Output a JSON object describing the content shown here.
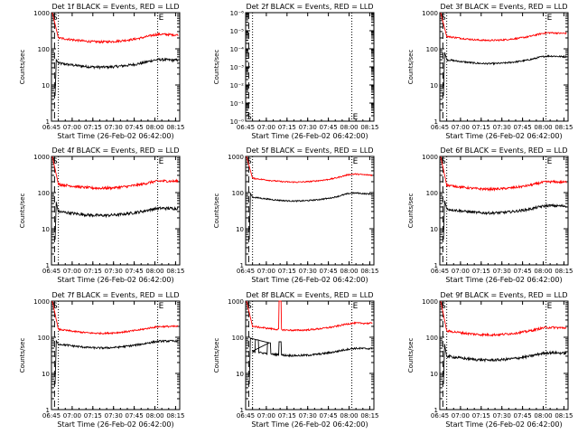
{
  "figure": {
    "colors": {
      "events": "#000000",
      "lld": "#ff0000",
      "axes": "#000000",
      "background": "#ffffff"
    }
  },
  "chart_data": [
    {
      "type": "line",
      "scale": "log",
      "title": "Det 1f BLACK = Events, RED = LLD",
      "xlabel": "Start Time (26-Feb-02 06:42:00)",
      "ylabel": "Counts/sec",
      "x_ticks": [
        "06:45",
        "07:00",
        "07:15",
        "07:30",
        "07:45",
        "08:00",
        "08:15"
      ],
      "y_ticks": [
        "1",
        "10",
        "100",
        "1000"
      ],
      "ylim": [
        1,
        1000
      ],
      "markers": [
        "S",
        "E"
      ],
      "series": [
        {
          "name": "Events",
          "color": "#000000",
          "base": 40,
          "trend": 0.8,
          "noise": 0.08,
          "features": [
            {
              "t": 6.5,
              "v": 50
            }
          ]
        },
        {
          "name": "LLD",
          "color": "#ff0000",
          "base": 200,
          "trend": 0.8,
          "noise": 0.07
        }
      ]
    },
    {
      "type": "line",
      "scale": "log",
      "title": "Det 2f BLACK = Events, RED = LLD",
      "xlabel": "Start Time (26-Feb-02 06:42:00)",
      "ylabel": "Counts/sec",
      "x_ticks": [
        "06:45",
        "07:00",
        "07:15",
        "07:30",
        "07:45",
        "08:00",
        "08:15"
      ],
      "y_ticks": [
        "10⁻⁰",
        "10⁻¹",
        "10⁻²",
        "10⁻³",
        "10⁻⁴",
        "10⁻⁵",
        "10⁻⁶"
      ],
      "markers": [
        "S",
        "E"
      ],
      "series": []
    },
    {
      "type": "line",
      "scale": "log",
      "title": "Det 3f BLACK = Events, RED = LLD",
      "xlabel": "Start Time (26-Feb-02 06:42:00)",
      "ylabel": "Counts/sec",
      "x_ticks": [
        "06:45",
        "07:00",
        "07:15",
        "07:30",
        "07:45",
        "08:00",
        "08:15"
      ],
      "y_ticks": [
        "1",
        "10",
        "100",
        "1000"
      ],
      "ylim": [
        1,
        1000
      ],
      "markers": [
        "S",
        "E"
      ],
      "series": [
        {
          "name": "Events",
          "color": "#000000",
          "base": 50,
          "trend": 0.8,
          "noise": 0.05,
          "features": [
            {
              "t": 6.5,
              "v": 80
            }
          ]
        },
        {
          "name": "LLD",
          "color": "#ff0000",
          "base": 220,
          "trend": 0.8,
          "noise": 0.05
        }
      ]
    },
    {
      "type": "line",
      "scale": "log",
      "title": "Det 4f BLACK = Events, RED = LLD",
      "xlabel": "Start Time (26-Feb-02 06:42:00)",
      "ylabel": "Counts/sec",
      "x_ticks": [
        "06:45",
        "07:00",
        "07:15",
        "07:30",
        "07:45",
        "08:00",
        "08:15"
      ],
      "y_ticks": [
        "1",
        "10",
        "100",
        "1000"
      ],
      "ylim": [
        1,
        1000
      ],
      "markers": [
        "S",
        "E"
      ],
      "series": [
        {
          "name": "Events",
          "color": "#000000",
          "base": 30,
          "trend": 0.6,
          "noise": 0.09,
          "features": [
            {
              "t": 6.5,
              "v": 55
            }
          ]
        },
        {
          "name": "LLD",
          "color": "#ff0000",
          "base": 170,
          "trend": 0.6,
          "noise": 0.08
        }
      ]
    },
    {
      "type": "line",
      "scale": "log",
      "title": "Det 5f BLACK = Events, RED = LLD",
      "xlabel": "Start Time (26-Feb-02 06:42:00)",
      "ylabel": "Counts/sec",
      "x_ticks": [
        "06:45",
        "07:00",
        "07:15",
        "07:30",
        "07:45",
        "08:00",
        "08:15"
      ],
      "y_ticks": [
        "1",
        "10",
        "100",
        "1000"
      ],
      "ylim": [
        1,
        1000
      ],
      "markers": [
        "S",
        "E"
      ],
      "series": [
        {
          "name": "Events",
          "color": "#000000",
          "base": 75,
          "trend": 1.0,
          "noise": 0.04,
          "features": [
            {
              "t": 6.5,
              "v": 95
            }
          ]
        },
        {
          "name": "LLD",
          "color": "#ff0000",
          "base": 250,
          "trend": 1.0,
          "noise": 0.04
        }
      ]
    },
    {
      "type": "line",
      "scale": "log",
      "title": "Det 6f BLACK = Events, RED = LLD",
      "xlabel": "Start Time (26-Feb-02 06:42:00)",
      "ylabel": "Counts/sec",
      "x_ticks": [
        "06:45",
        "07:00",
        "07:15",
        "07:30",
        "07:45",
        "08:00",
        "08:15"
      ],
      "y_ticks": [
        "1",
        "10",
        "100",
        "1000"
      ],
      "ylim": [
        1,
        1000
      ],
      "markers": [
        "S",
        "E"
      ],
      "series": [
        {
          "name": "Events",
          "color": "#000000",
          "base": 35,
          "trend": 0.7,
          "noise": 0.08,
          "features": [
            {
              "t": 6.5,
              "v": 60
            }
          ]
        },
        {
          "name": "LLD",
          "color": "#ff0000",
          "base": 160,
          "trend": 0.7,
          "noise": 0.07
        }
      ]
    },
    {
      "type": "line",
      "scale": "log",
      "title": "Det 7f BLACK = Events, RED = LLD",
      "xlabel": "Start Time (26-Feb-02 06:42:00)",
      "ylabel": "Counts/sec",
      "x_ticks": [
        "06:45",
        "07:00",
        "07:15",
        "07:30",
        "07:45",
        "08:00",
        "08:15"
      ],
      "y_ticks": [
        "1",
        "10",
        "100",
        "1000"
      ],
      "ylim": [
        1,
        1000
      ],
      "markers": [
        "S",
        "E"
      ],
      "series": [
        {
          "name": "Events",
          "color": "#000000",
          "base": 65,
          "trend": 0.4,
          "noise": 0.06,
          "features": [
            {
              "t": 6.5,
              "v": 80
            }
          ]
        },
        {
          "name": "LLD",
          "color": "#ff0000",
          "base": 165,
          "trend": 0.4,
          "noise": 0.05
        }
      ]
    },
    {
      "type": "line",
      "scale": "log",
      "title": "Det 8f BLACK = Events, RED = LLD",
      "xlabel": "Start Time (26-Feb-02 06:42:00)",
      "ylabel": "Counts/sec",
      "x_ticks": [
        "06:45",
        "07:00",
        "07:15",
        "07:30",
        "07:45",
        "08:00",
        "08:15"
      ],
      "y_ticks": [
        "1",
        "10",
        "100",
        "1000"
      ],
      "ylim": [
        1,
        1000
      ],
      "markers": [
        "S",
        "E"
      ],
      "series": [
        {
          "name": "Events",
          "color": "#000000",
          "base": 40,
          "trend": 0.6,
          "noise": 0.06,
          "features": [
            {
              "t": 6.5,
              "v": 95
            },
            {
              "t": 11,
              "v": 85
            },
            {
              "t": 20,
              "v": 70
            }
          ],
          "spike": {
            "t0": 27,
            "t1": 29,
            "v": 75
          }
        },
        {
          "name": "LLD",
          "color": "#ff0000",
          "base": 200,
          "trend": 0.6,
          "noise": 0.05,
          "spike": {
            "t0": 27,
            "t1": 29,
            "v": 1000
          }
        }
      ]
    },
    {
      "type": "line",
      "scale": "log",
      "title": "Det 9f BLACK = Events, RED = LLD",
      "xlabel": "Start Time (26-Feb-02 06:42:00)",
      "ylabel": "Counts/sec",
      "x_ticks": [
        "06:45",
        "07:00",
        "07:15",
        "07:30",
        "07:45",
        "08:00",
        "08:15"
      ],
      "y_ticks": [
        "1",
        "10",
        "100",
        "1000"
      ],
      "ylim": [
        1,
        1000
      ],
      "markers": [
        "S",
        "E"
      ],
      "series": [
        {
          "name": "Events",
          "color": "#000000",
          "base": 30,
          "trend": 0.7,
          "noise": 0.08,
          "features": [
            {
              "t": 6.5,
              "v": 65
            }
          ]
        },
        {
          "name": "LLD",
          "color": "#ff0000",
          "base": 150,
          "trend": 0.7,
          "noise": 0.07
        }
      ]
    }
  ]
}
